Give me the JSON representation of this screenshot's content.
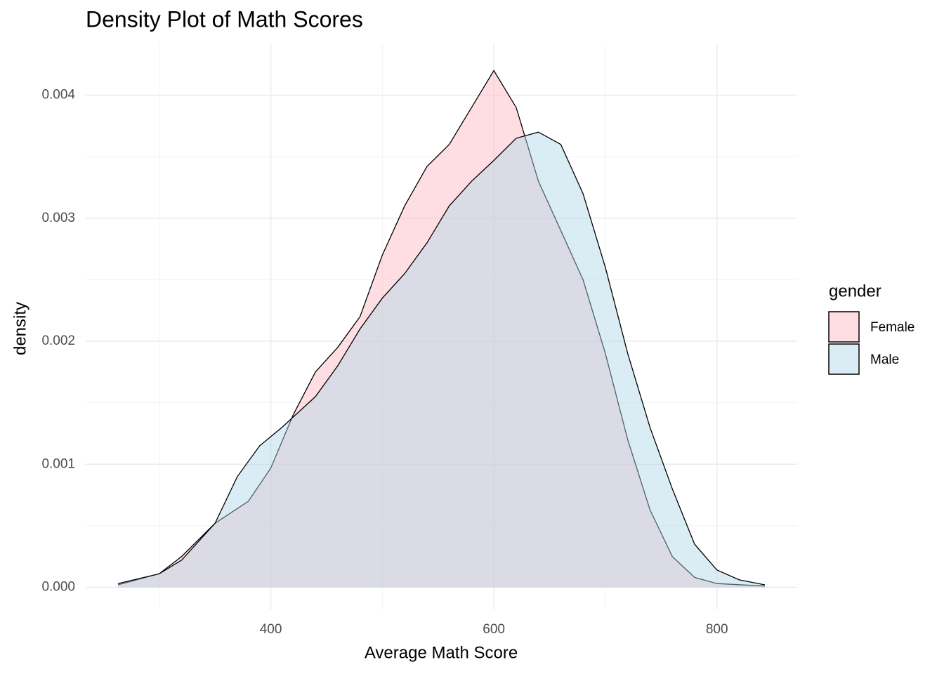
{
  "chart_data": {
    "type": "density",
    "title": "Density Plot of Math Scores",
    "x_label": "Average Math Score",
    "y_label": "density",
    "legend_title": "gender",
    "legend_position": "right",
    "grid": true,
    "alpha": 0.45,
    "xlim": [
      234,
      872
    ],
    "ylim": [
      -0.00018,
      0.00442
    ],
    "xticks": [
      400,
      600,
      800
    ],
    "x_minor_ticks": [
      300,
      500,
      700
    ],
    "yticks": [
      {
        "value": 0,
        "label": "0.000"
      },
      {
        "value": 0.001,
        "label": "0.001"
      },
      {
        "value": 0.002,
        "label": "0.002"
      },
      {
        "value": 0.003,
        "label": "0.003"
      },
      {
        "value": 0.004,
        "label": "0.004"
      }
    ],
    "y_minor_ticks": [
      0.0005,
      0.0015,
      0.0025,
      0.0035
    ],
    "series": [
      {
        "name": "Female",
        "color": "#FFB6C1",
        "x": [
          263,
          300,
          320,
          350,
          380,
          400,
          420,
          440,
          460,
          480,
          500,
          520,
          540,
          560,
          580,
          600,
          620,
          640,
          660,
          680,
          700,
          720,
          740,
          760,
          780,
          800,
          843
        ],
        "values": [
          2e-05,
          0.00011,
          0.00025,
          0.00052,
          0.0007,
          0.00097,
          0.0014,
          0.00175,
          0.00195,
          0.0022,
          0.0027,
          0.0031,
          0.00342,
          0.0036,
          0.0039,
          0.0042,
          0.0039,
          0.0033,
          0.0029,
          0.0025,
          0.0019,
          0.0012,
          0.00063,
          0.00025,
          8e-05,
          3e-05,
          1e-05
        ]
      },
      {
        "name": "Male",
        "color": "#ADD8E6",
        "x": [
          263,
          300,
          320,
          350,
          370,
          390,
          410,
          440,
          460,
          480,
          500,
          520,
          540,
          560,
          580,
          600,
          620,
          640,
          660,
          680,
          700,
          720,
          740,
          760,
          780,
          800,
          820,
          843
        ],
        "values": [
          3e-05,
          0.00011,
          0.00022,
          0.00052,
          0.0009,
          0.00115,
          0.0013,
          0.00155,
          0.0018,
          0.0021,
          0.00235,
          0.00255,
          0.0028,
          0.0031,
          0.0033,
          0.00347,
          0.00365,
          0.0037,
          0.0036,
          0.0032,
          0.0026,
          0.0019,
          0.0013,
          0.0008,
          0.00035,
          0.00014,
          6e-05,
          2e-05
        ]
      }
    ]
  }
}
